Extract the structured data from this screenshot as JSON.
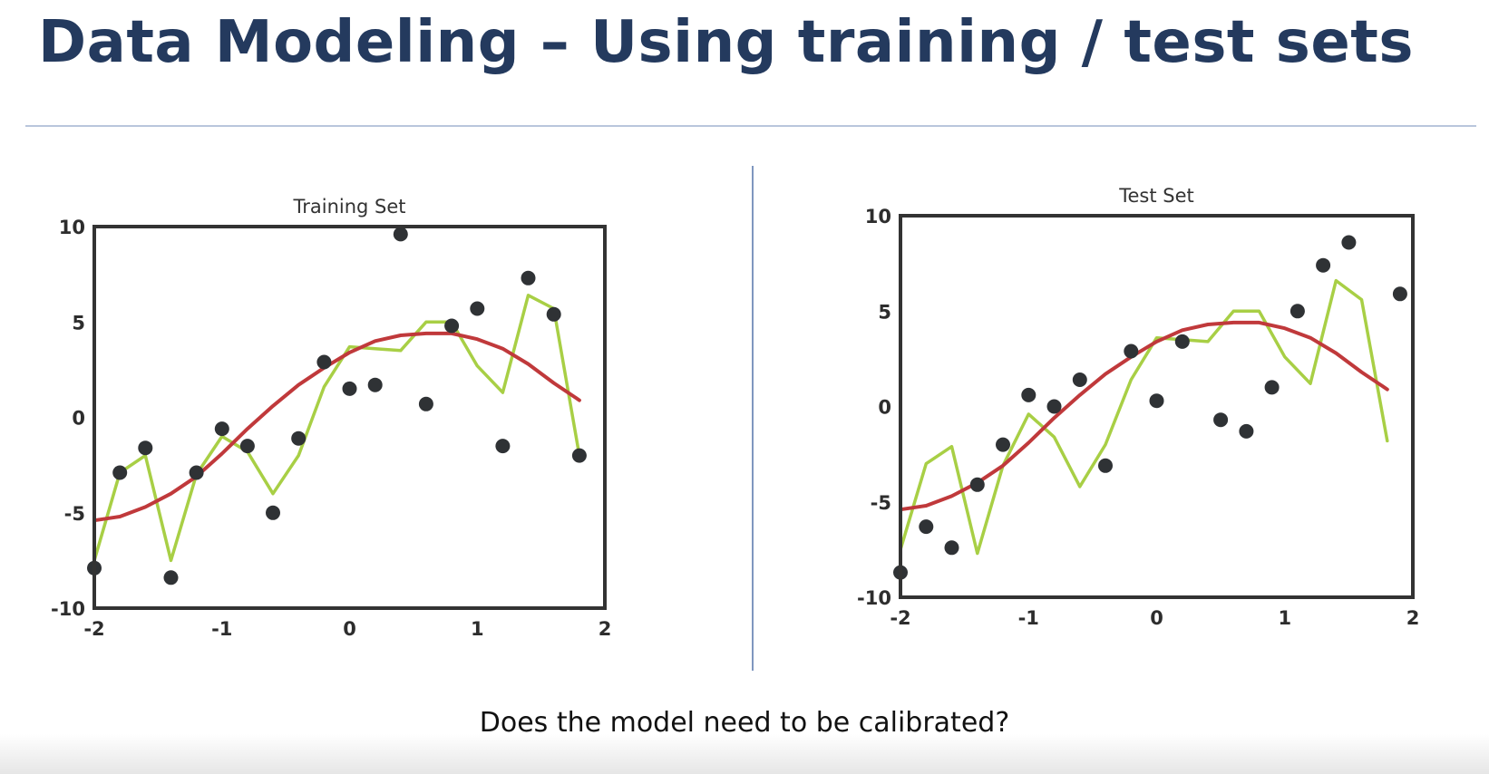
{
  "slide": {
    "title": "Data Modeling – Using training / test sets",
    "question": "Does the model need to be calibrated?"
  },
  "colors": {
    "points": "#2f3235",
    "model_curve": "#c0393b",
    "overfit_line": "#a8cf45",
    "frame": "#333333",
    "title": "#243a5e"
  },
  "chart_data": [
    {
      "type": "scatter",
      "title": "Training Set",
      "xlim": [
        -2,
        2
      ],
      "ylim": [
        -10,
        10
      ],
      "xticks": [
        -2,
        -1,
        0,
        1,
        2
      ],
      "yticks": [
        10,
        5,
        0,
        -5,
        -10
      ],
      "grid": false,
      "series": [
        {
          "kind": "points",
          "x": [
            -2.0,
            -1.8,
            -1.6,
            -1.4,
            -1.2,
            -1.0,
            -0.8,
            -0.6,
            -0.4,
            -0.2,
            0.0,
            0.2,
            0.4,
            0.6,
            0.8,
            1.0,
            1.2,
            1.4,
            1.6,
            1.8
          ],
          "y": [
            -7.9,
            -2.9,
            -1.6,
            -8.4,
            -2.9,
            -0.6,
            -1.5,
            -5.0,
            -1.1,
            2.9,
            1.5,
            1.7,
            9.6,
            0.7,
            4.8,
            5.7,
            -1.5,
            7.3,
            5.4,
            -2.0
          ]
        },
        {
          "kind": "overfit-line",
          "x": [
            -2.0,
            -1.8,
            -1.6,
            -1.4,
            -1.2,
            -1.0,
            -0.8,
            -0.6,
            -0.4,
            -0.2,
            0.0,
            0.2,
            0.4,
            0.6,
            0.8,
            1.0,
            1.2,
            1.4,
            1.6,
            1.8
          ],
          "y": [
            -7.5,
            -2.9,
            -2.0,
            -7.5,
            -3.0,
            -1.0,
            -1.8,
            -4.0,
            -2.0,
            1.6,
            3.7,
            3.6,
            3.5,
            5.0,
            5.0,
            2.7,
            1.3,
            6.4,
            5.7,
            -2.0
          ]
        },
        {
          "kind": "model-curve",
          "x": [
            -2.0,
            -1.8,
            -1.6,
            -1.4,
            -1.2,
            -1.0,
            -0.8,
            -0.6,
            -0.4,
            -0.2,
            0.0,
            0.2,
            0.4,
            0.6,
            0.8,
            1.0,
            1.2,
            1.4,
            1.6,
            1.8
          ],
          "y": [
            -5.4,
            -5.2,
            -4.7,
            -4.0,
            -3.1,
            -1.9,
            -0.6,
            0.6,
            1.7,
            2.6,
            3.4,
            4.0,
            4.3,
            4.4,
            4.4,
            4.1,
            3.6,
            2.8,
            1.8,
            0.9
          ]
        }
      ]
    },
    {
      "type": "scatter",
      "title": "Test Set",
      "xlim": [
        -2,
        2
      ],
      "ylim": [
        -10,
        10
      ],
      "xticks": [
        -2,
        -1,
        0,
        1,
        2
      ],
      "yticks": [
        10,
        5,
        0,
        -5,
        -10
      ],
      "grid": false,
      "series": [
        {
          "kind": "points",
          "x": [
            -2.0,
            -1.8,
            -1.6,
            -1.4,
            -1.2,
            -1.0,
            -0.8,
            -0.6,
            -0.4,
            -0.2,
            0.0,
            0.2,
            0.5,
            0.7,
            0.9,
            1.1,
            1.3,
            1.5,
            1.9
          ],
          "y": [
            -8.7,
            -6.3,
            -7.4,
            -4.1,
            -2.0,
            0.6,
            0.0,
            1.4,
            -3.1,
            2.9,
            0.3,
            3.4,
            -0.7,
            -1.3,
            1.0,
            5.0,
            7.4,
            8.6,
            5.9
          ]
        },
        {
          "kind": "overfit-line",
          "x": [
            -2.0,
            -1.8,
            -1.6,
            -1.4,
            -1.2,
            -1.0,
            -0.8,
            -0.6,
            -0.4,
            -0.2,
            0.0,
            0.2,
            0.4,
            0.6,
            0.8,
            1.0,
            1.2,
            1.4,
            1.6,
            1.8
          ],
          "y": [
            -7.5,
            -3.0,
            -2.1,
            -7.7,
            -3.1,
            -0.4,
            -1.6,
            -4.2,
            -2.0,
            1.4,
            3.6,
            3.5,
            3.4,
            5.0,
            5.0,
            2.6,
            1.2,
            6.6,
            5.6,
            -1.8
          ]
        },
        {
          "kind": "model-curve",
          "x": [
            -2.0,
            -1.8,
            -1.6,
            -1.4,
            -1.2,
            -1.0,
            -0.8,
            -0.6,
            -0.4,
            -0.2,
            0.0,
            0.2,
            0.4,
            0.6,
            0.8,
            1.0,
            1.2,
            1.4,
            1.6,
            1.8
          ],
          "y": [
            -5.4,
            -5.2,
            -4.7,
            -4.0,
            -3.1,
            -1.9,
            -0.6,
            0.6,
            1.7,
            2.6,
            3.4,
            4.0,
            4.3,
            4.4,
            4.4,
            4.1,
            3.6,
            2.8,
            1.8,
            0.9
          ]
        }
      ]
    }
  ]
}
